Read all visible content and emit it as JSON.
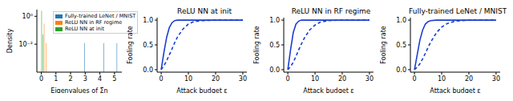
{
  "chart_data": [
    {
      "type": "bar",
      "xlabel": "Eigenvalues of Σ̂η",
      "ylabel": "Density",
      "log": "y",
      "legend": "upper center",
      "xlim": [
        -0.3,
        5.5
      ],
      "xticks": [
        0,
        1,
        2,
        3,
        4,
        5
      ],
      "ylim": [
        0.0001,
        3
      ],
      "yticks": [
        {
          "value": 0.01,
          "label": "10⁻²"
        },
        {
          "value": 1,
          "label": "10⁰"
        }
      ],
      "series": [
        {
          "name": "Fully-trained LeNet / MNIST",
          "color": "#1f77b4",
          "x": [
            3.0,
            4.3,
            5.2
          ],
          "values": [
            0.012,
            0.012,
            0.012
          ]
        },
        {
          "name": "ReLU NN in RF regime",
          "color": "#ff7f0e",
          "x": [
            0.2,
            0.35
          ],
          "values": [
            0.3,
            0.012
          ]
        },
        {
          "name": "ReLU NN at init",
          "color": "#2ca02c",
          "x": [
            0.0,
            0.1
          ],
          "values": [
            2.5,
            0.05
          ]
        }
      ]
    },
    {
      "type": "line",
      "title": "ReLU NN at init",
      "xlabel": "Attack budget ε",
      "ylabel": "Fooling rate",
      "xlim": [
        -1.5,
        31.5
      ],
      "xticks": [
        0,
        10,
        20,
        30
      ],
      "ylim": [
        -0.05,
        1.05
      ],
      "yticks": [
        {
          "value": 0,
          "label": "0.0"
        },
        {
          "value": 0.5,
          "label": "0.5"
        },
        {
          "value": 1,
          "label": "1.0"
        }
      ],
      "x": [
        0,
        1,
        2,
        3,
        4,
        5,
        6,
        8,
        10,
        12,
        15,
        20,
        25,
        30
      ],
      "series": [
        {
          "color": "#1a3fd0",
          "line_style": "solid",
          "values": [
            0,
            0.35,
            0.65,
            0.85,
            0.95,
            0.99,
            1,
            1,
            1,
            1,
            1,
            1,
            1,
            1
          ]
        },
        {
          "color": "#1a3fd0",
          "line_style": "dashed",
          "values": [
            0,
            0.08,
            0.18,
            0.3,
            0.42,
            0.55,
            0.66,
            0.82,
            0.92,
            0.97,
            0.99,
            1,
            1,
            1
          ]
        }
      ]
    },
    {
      "type": "line",
      "title": "ReLU NN in RF regime",
      "xlabel": "Attack budget ε",
      "ylabel": "Fooling rate",
      "xlim": [
        -1.5,
        31.5
      ],
      "xticks": [
        0,
        10,
        20,
        30
      ],
      "ylim": [
        -0.05,
        1.05
      ],
      "yticks": [
        {
          "value": 0,
          "label": "0.0"
        },
        {
          "value": 0.5,
          "label": "0.5"
        },
        {
          "value": 1,
          "label": "1.0"
        }
      ],
      "x": [
        0,
        1,
        2,
        3,
        4,
        5,
        6,
        8,
        10,
        12,
        15,
        20,
        25,
        30
      ],
      "series": [
        {
          "color": "#1a3fd0",
          "line_style": "solid",
          "values": [
            0,
            0.4,
            0.75,
            0.92,
            0.98,
            1,
            1,
            1,
            1,
            1,
            1,
            1,
            1,
            1
          ]
        },
        {
          "color": "#1a3fd0",
          "line_style": "dashed",
          "values": [
            0,
            0.06,
            0.15,
            0.27,
            0.4,
            0.52,
            0.63,
            0.8,
            0.9,
            0.96,
            0.99,
            1,
            1,
            1
          ]
        }
      ]
    },
    {
      "type": "line",
      "title": "Fully-trained LeNet / MNIST",
      "xlabel": "Attack budget ε",
      "ylabel": "Fooling rate",
      "xlim": [
        -1.5,
        31.5
      ],
      "xticks": [
        0,
        10,
        20,
        30
      ],
      "ylim": [
        -0.05,
        1.05
      ],
      "yticks": [
        {
          "value": 0,
          "label": "0.0"
        },
        {
          "value": 0.5,
          "label": "0.5"
        },
        {
          "value": 1,
          "label": "1.0"
        }
      ],
      "x": [
        0,
        1,
        2,
        3,
        4,
        5,
        6,
        8,
        10,
        12,
        15,
        20,
        25,
        30
      ],
      "series": [
        {
          "color": "#1a3fd0",
          "line_style": "solid",
          "values": [
            0,
            0.3,
            0.6,
            0.8,
            0.92,
            0.97,
            0.99,
            1,
            1,
            1,
            1,
            1,
            1,
            1
          ]
        },
        {
          "color": "#1a3fd0",
          "line_style": "dashed",
          "values": [
            0,
            0.05,
            0.12,
            0.22,
            0.33,
            0.45,
            0.56,
            0.74,
            0.86,
            0.93,
            0.98,
            1,
            1,
            1
          ]
        }
      ]
    }
  ]
}
